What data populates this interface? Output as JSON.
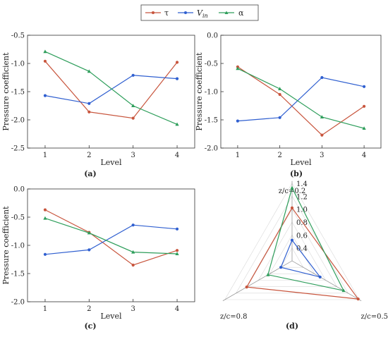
{
  "legend": {
    "items": [
      {
        "label": "τ",
        "color": "#c8553d"
      },
      {
        "label": "Vin",
        "color": "#2f5fd0"
      },
      {
        "label": "α",
        "color": "#2e9e5b"
      }
    ]
  },
  "colors": {
    "tau": "#c8553d",
    "vin": "#2f5fd0",
    "alpha": "#2e9e5b"
  },
  "chart_data": [
    {
      "type": "line",
      "panel": "(a)",
      "xlabel": "Level",
      "ylabel": "Pressure coefficient",
      "x": [
        1,
        2,
        3,
        4
      ],
      "ylim": [
        -2.5,
        -0.5
      ],
      "yticks": [
        -0.5,
        -1.0,
        -1.5,
        -2.0,
        -2.5
      ],
      "ytick_labels": [
        "-0.5",
        "-1.0",
        "-1.5",
        "-2.0",
        "-2.5"
      ],
      "series": [
        {
          "name": "τ",
          "values": [
            -0.96,
            -1.86,
            -1.97,
            -0.98
          ]
        },
        {
          "name": "Vin",
          "values": [
            -1.57,
            -1.71,
            -1.21,
            -1.27
          ]
        },
        {
          "name": "α",
          "values": [
            -0.79,
            -1.14,
            -1.75,
            -2.08
          ]
        }
      ]
    },
    {
      "type": "line",
      "panel": "(b)",
      "xlabel": "Level",
      "ylabel": "Pressure coefficient",
      "x": [
        1,
        2,
        3,
        4
      ],
      "ylim": [
        -2.0,
        0.0
      ],
      "yticks": [
        0.0,
        -0.5,
        -1.0,
        -1.5,
        -2.0
      ],
      "ytick_labels": [
        "0.0",
        "-0.5",
        "-1.0",
        "-1.5",
        "-2.0"
      ],
      "series": [
        {
          "name": "τ",
          "values": [
            -0.56,
            -1.05,
            -1.77,
            -1.26
          ]
        },
        {
          "name": "Vin",
          "values": [
            -1.52,
            -1.46,
            -0.75,
            -0.91
          ]
        },
        {
          "name": "α",
          "values": [
            -0.59,
            -0.95,
            -1.45,
            -1.65
          ]
        }
      ]
    },
    {
      "type": "line",
      "panel": "(c)",
      "xlabel": "Level",
      "ylabel": "Pressure coefficient",
      "x": [
        1,
        2,
        3,
        4
      ],
      "ylim": [
        -2.0,
        0.0
      ],
      "yticks": [
        0.0,
        -0.5,
        -1.0,
        -1.5,
        -2.0
      ],
      "ytick_labels": [
        "0.0",
        "-0.5",
        "-1.0",
        "-1.5",
        "-2.0"
      ],
      "series": [
        {
          "name": "τ",
          "values": [
            -0.37,
            -0.77,
            -1.35,
            -1.09
          ]
        },
        {
          "name": "Vin",
          "values": [
            -1.16,
            -1.08,
            -0.64,
            -0.71
          ]
        },
        {
          "name": "α",
          "values": [
            -0.52,
            -0.78,
            -1.12,
            -1.15
          ]
        }
      ]
    },
    {
      "type": "radar",
      "panel": "(d)",
      "axes": [
        "z/c=0.2",
        "z/c=0.5",
        "z/c=0.8"
      ],
      "rlim": [
        0.2,
        1.4
      ],
      "rticks": [
        0.4,
        0.6,
        0.8,
        1.0,
        1.2,
        1.4
      ],
      "rtick_labels": [
        "0.4",
        "0.6",
        "0.8",
        "1.0",
        "1.2",
        "1.4"
      ],
      "series": [
        {
          "name": "τ",
          "values": [
            1.02,
            1.38,
            1.01
          ]
        },
        {
          "name": "Vin",
          "values": [
            0.52,
            0.7,
            0.4
          ]
        },
        {
          "name": "α",
          "values": [
            1.33,
            1.12,
            0.63
          ]
        }
      ]
    }
  ]
}
